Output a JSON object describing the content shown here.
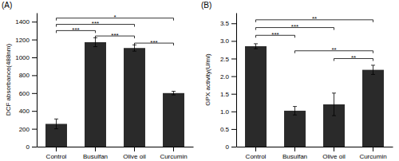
{
  "chart_data": [
    {
      "type": "bar",
      "title": "(A)",
      "ylabel": "DCF absorbance(488nm)",
      "categories": [
        "Control",
        "Busulfan",
        "Olive oil",
        "Curcumin"
      ],
      "values": [
        255,
        1170,
        1105,
        600
      ],
      "errors": [
        55,
        50,
        35,
        20
      ],
      "color": "#2a2a2a",
      "ylim": [
        0,
        1500
      ],
      "yticks": [
        0,
        200,
        400,
        600,
        800,
        1000,
        1200,
        1400
      ],
      "grid": false,
      "annotations": [
        {
          "text": "*",
          "x1": "Control",
          "x2": "Curcumin",
          "y": 1440
        },
        {
          "text": "***",
          "x1": "Control",
          "x2": "Olive oil",
          "y": 1370
        },
        {
          "text": "***",
          "x1": "Control",
          "x2": "Busulfan",
          "y": 1300
        },
        {
          "text": "***",
          "x1": "Busulfan",
          "x2": "Olive oil",
          "y": 1240
        },
        {
          "text": "***",
          "x1": "Olive oil",
          "x2": "Curcumin",
          "y": 1160
        }
      ]
    },
    {
      "type": "bar",
      "title": "(B)",
      "ylabel": "GPX activity(U/ml)",
      "categories": [
        "Control",
        "Busulfan",
        "Olive oil",
        "Curcumin"
      ],
      "values": [
        2.85,
        1.02,
        1.2,
        2.18
      ],
      "errors": [
        0.07,
        0.12,
        0.32,
        0.13
      ],
      "color": "#2a2a2a",
      "ylim": [
        0,
        3.8
      ],
      "yticks": [
        0,
        0.5,
        {
          "value": 1.0,
          "label": "1.0"
        },
        1.5,
        {
          "value": 2.0,
          "label": "2.0"
        },
        2.5,
        {
          "value": 3.0,
          "label": "3.0"
        },
        3.5
      ],
      "grid": false,
      "annotations": [
        {
          "text": "**",
          "x1": "Control",
          "x2": "Curcumin",
          "y": 3.6
        },
        {
          "text": "***",
          "x1": "Control",
          "x2": "Olive oil",
          "y": 3.38
        },
        {
          "text": "***",
          "x1": "Control",
          "x2": "Busulfan",
          "y": 3.16
        },
        {
          "text": "**",
          "x1": "Busulfan",
          "x2": "Curcumin",
          "y": 2.72
        },
        {
          "text": "**",
          "x1": "Olive oil",
          "x2": "Curcumin",
          "y": 2.5
        }
      ]
    }
  ]
}
